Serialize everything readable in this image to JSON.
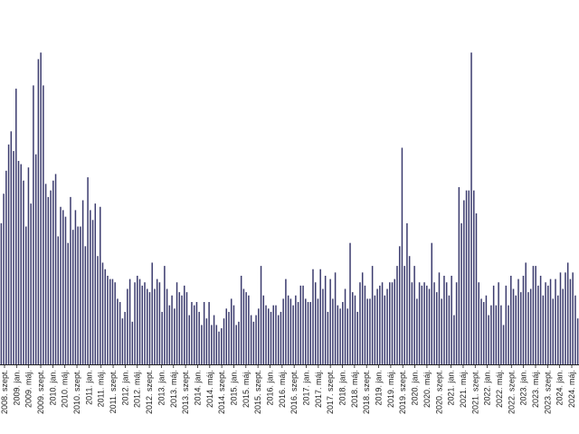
{
  "chart_data": {
    "type": "bar",
    "title": "",
    "xlabel": "",
    "ylabel": "",
    "ylim": [
      0,
      100
    ],
    "grid": false,
    "legend": "none",
    "colors": {
      "bar": "#3b3b6e",
      "axis": "#222222",
      "label": "#222222"
    },
    "tick_labels": [
      "2008. szept.",
      "2009. jan.",
      "2009. máj.",
      "2009. szept.",
      "2010. jan.",
      "2010. máj.",
      "2010. szept.",
      "2011. jan.",
      "2011. máj.",
      "2011. szept.",
      "2012. jan.",
      "2012. máj.",
      "2012. szept.",
      "2013. jan.",
      "2013. máj.",
      "2013. szept.",
      "2014. jan.",
      "2014. máj.",
      "2014. szept.",
      "2015. jan.",
      "2015. máj.",
      "2015. szept.",
      "2016. jan.",
      "2016. máj.",
      "2016. szept.",
      "2017. jan.",
      "2017. máj.",
      "2017. szept.",
      "2018. jan.",
      "2018. máj.",
      "2018. szept.",
      "2019. jan.",
      "2019. máj.",
      "2019. szept.",
      "2020. jan.",
      "2020. máj.",
      "2020. szept.",
      "2021. jan.",
      "2021. máj.",
      "2021. szept.",
      "2022. jan.",
      "2022. máj.",
      "2022. szept.",
      "2023. jan.",
      "2023. máj.",
      "2023. szept.",
      "2024. jan.",
      "2024. máj."
    ],
    "values": [
      43,
      52,
      59,
      67,
      71,
      65,
      84,
      62,
      61,
      56,
      42,
      60,
      49,
      85,
      64,
      93,
      95,
      85,
      55,
      51,
      53,
      56,
      58,
      39,
      48,
      47,
      45,
      37,
      51,
      41,
      47,
      42,
      42,
      50,
      36,
      57,
      47,
      44,
      49,
      33,
      48,
      31,
      29,
      27,
      26,
      26,
      25,
      20,
      19,
      14,
      16,
      23,
      26,
      13,
      25,
      27,
      26,
      24,
      25,
      23,
      22,
      31,
      23,
      26,
      25,
      16,
      30,
      23,
      18,
      21,
      17,
      25,
      22,
      21,
      24,
      22,
      15,
      19,
      18,
      19,
      16,
      12,
      19,
      14,
      19,
      12,
      15,
      12,
      10,
      11,
      14,
      17,
      16,
      20,
      18,
      12,
      13,
      27,
      23,
      22,
      21,
      15,
      13,
      15,
      17,
      30,
      21,
      18,
      17,
      16,
      18,
      18,
      15,
      16,
      20,
      26,
      21,
      20,
      18,
      21,
      19,
      24,
      24,
      20,
      19,
      19,
      29,
      25,
      20,
      29,
      23,
      27,
      16,
      26,
      20,
      28,
      18,
      17,
      19,
      23,
      17,
      37,
      22,
      21,
      16,
      25,
      28,
      24,
      20,
      20,
      30,
      21,
      23,
      24,
      25,
      21,
      23,
      25,
      25,
      26,
      30,
      36,
      66,
      30,
      43,
      33,
      25,
      30,
      20,
      25,
      24,
      25,
      24,
      23,
      37,
      25,
      22,
      28,
      20,
      27,
      25,
      21,
      27,
      15,
      25,
      54,
      43,
      50,
      53,
      53,
      95,
      53,
      46,
      25,
      20,
      19,
      21,
      15,
      18,
      24,
      18,
      25,
      18,
      12,
      24,
      18,
      27,
      23,
      21,
      26,
      22,
      27,
      31,
      22,
      23,
      30,
      30,
      24,
      27,
      21,
      25,
      24,
      26,
      20,
      26,
      21,
      28,
      23,
      28,
      31,
      26,
      28,
      21,
      14
    ]
  }
}
